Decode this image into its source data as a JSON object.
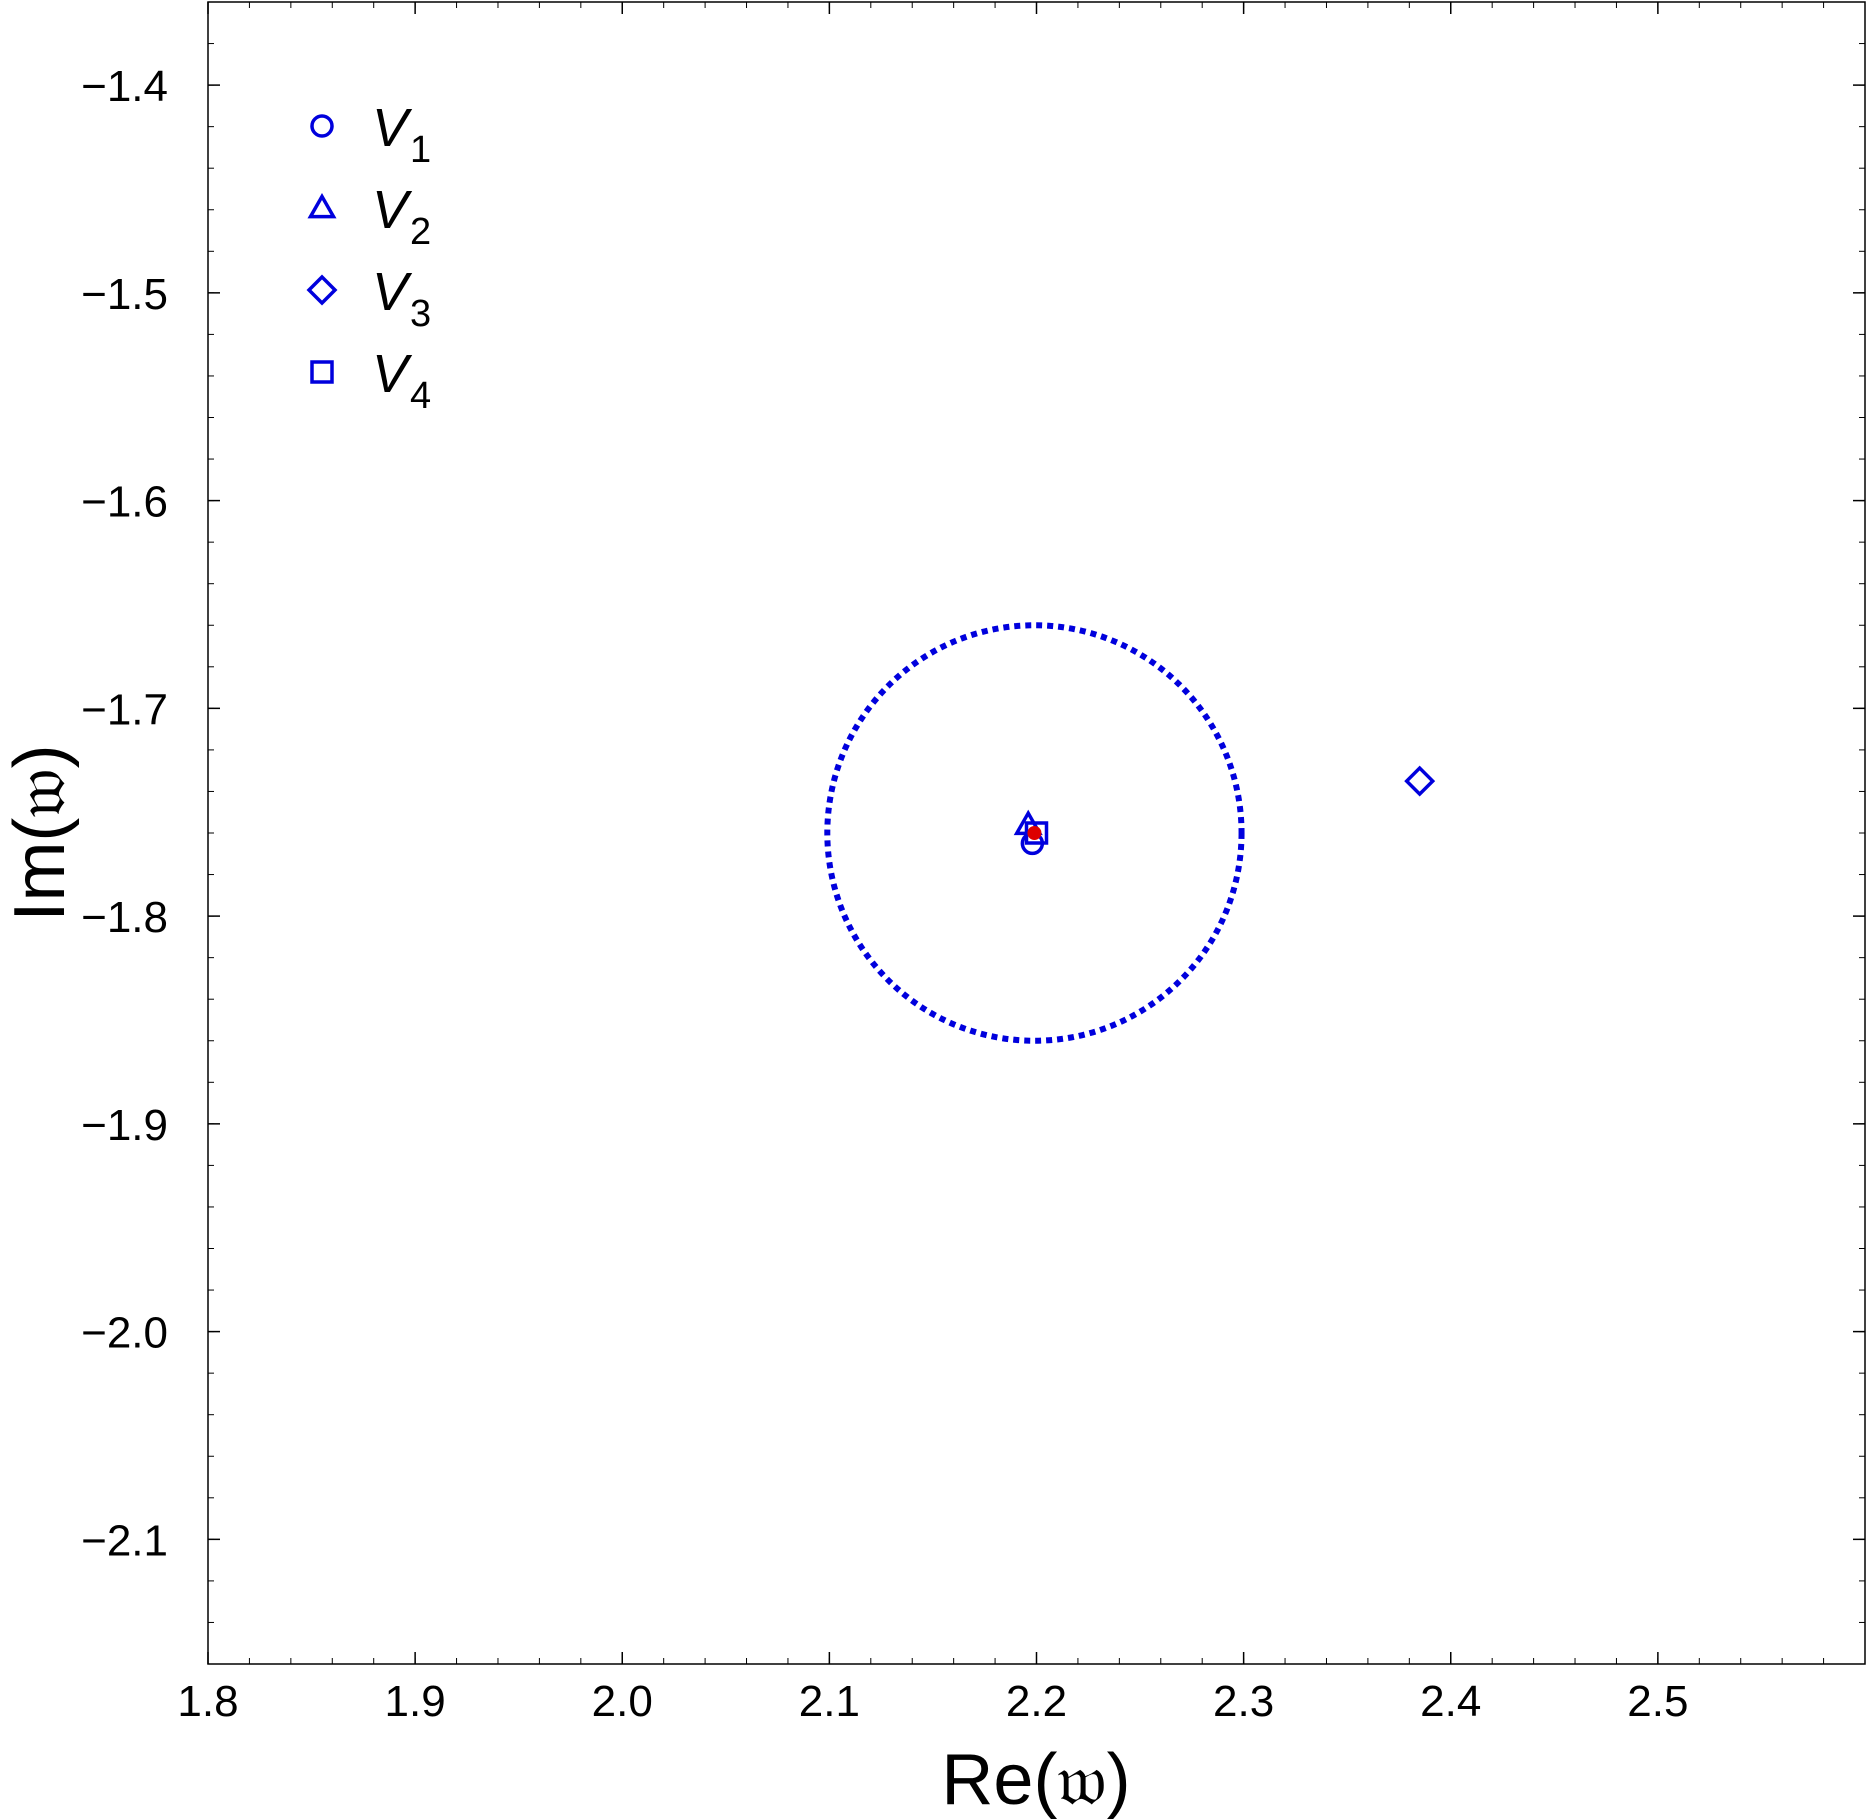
{
  "chart_data": {
    "type": "scatter",
    "xlabel": "Re(𝔴)",
    "ylabel": "Im(𝔴)",
    "xlim": [
      1.8,
      2.6
    ],
    "ylim": [
      -2.16,
      -1.36
    ],
    "x_ticks": [
      1.8,
      1.9,
      2.0,
      2.1,
      2.2,
      2.3,
      2.4,
      2.5
    ],
    "x_tick_labels": [
      "1.8",
      "1.9",
      "2.0",
      "2.1",
      "2.2",
      "2.3",
      "2.4",
      "2.5"
    ],
    "y_ticks": [
      -1.4,
      -1.5,
      -1.6,
      -1.7,
      -1.8,
      -1.9,
      -2.0,
      -2.1
    ],
    "y_tick_labels": [
      "−1.4",
      "−1.5",
      "−1.6",
      "−1.7",
      "−1.8",
      "−1.9",
      "−2.0",
      "−2.1"
    ],
    "grid": false,
    "legend_position": "top-left",
    "series": [
      {
        "name": "V",
        "subscript": "1",
        "marker": "circle",
        "color": "#0000dd",
        "x": [
          2.198
        ],
        "y": [
          -1.765
        ]
      },
      {
        "name": "V",
        "subscript": "2",
        "marker": "triangle",
        "color": "#0000dd",
        "x": [
          2.196
        ],
        "y": [
          -1.756
        ]
      },
      {
        "name": "V",
        "subscript": "3",
        "marker": "diamond",
        "color": "#0000dd",
        "x": [
          2.385
        ],
        "y": [
          -1.735
        ]
      },
      {
        "name": "V",
        "subscript": "4",
        "marker": "square",
        "color": "#0000dd",
        "x": [
          2.2
        ],
        "y": [
          -1.76
        ]
      }
    ],
    "reference_point": {
      "x": 2.199,
      "y": -1.76,
      "color": "#dd0000"
    },
    "reference_circle": {
      "cx": 2.199,
      "cy": -1.76,
      "r": 0.1,
      "color": "#0000dd",
      "style": "dotted"
    }
  }
}
